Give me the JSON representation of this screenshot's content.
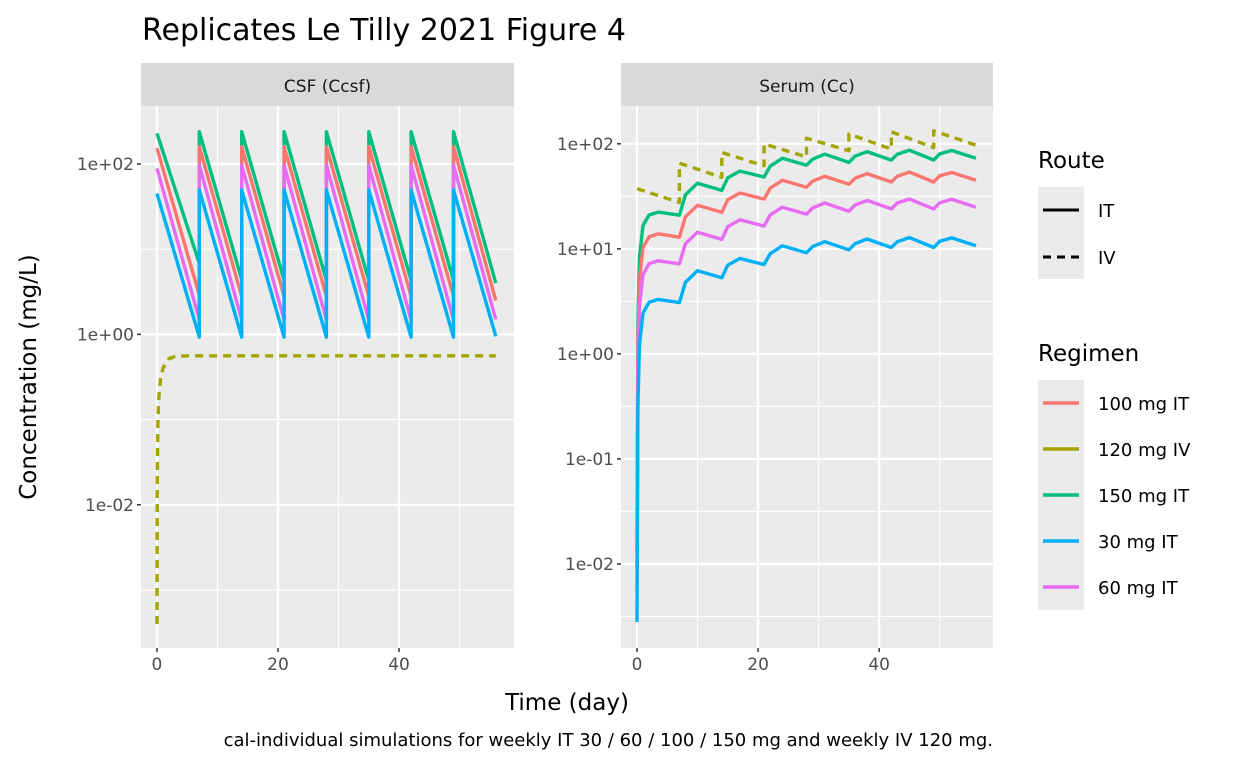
{
  "chart_data": {
    "type": "line",
    "title": "Replicates Le Tilly 2021 Figure 4",
    "xlabel": "Time (day)",
    "ylabel": "Concentration (mg/L)",
    "caption": "cal-individual simulations for weekly IT 30 / 60 / 100 / 150 mg and weekly IV 120 mg.",
    "yscale": "log10",
    "grid": true,
    "legend_position": "right",
    "legends": {
      "route": {
        "title": "Route",
        "items": [
          {
            "label": "IT",
            "linetype": "solid"
          },
          {
            "label": "IV",
            "linetype": "dashed"
          }
        ]
      },
      "regimen": {
        "title": "Regimen",
        "items": [
          {
            "label": "100 mg IT",
            "color": "#F8766D"
          },
          {
            "label": "120 mg IV",
            "color": "#A3A500"
          },
          {
            "label": "150 mg IT",
            "color": "#00BF7D"
          },
          {
            "label": "30 mg IT",
            "color": "#00B0F6"
          },
          {
            "label": "60 mg IT",
            "color": "#E76BF3"
          }
        ]
      }
    },
    "panels": [
      {
        "strip": "CSF (Ccsf)",
        "xlim": [
          -2.64,
          59
        ],
        "xticks": [
          0,
          20,
          40
        ],
        "xtick_labels": [
          "0",
          "20",
          "40"
        ],
        "ylim_log10": [
          -3.68,
          2.68
        ],
        "yticks": [
          100,
          1,
          0.01
        ],
        "ytick_labels": [
          "1e+02",
          "1e+00",
          "1e-02"
        ],
        "series": [
          {
            "name": "150 mg IT",
            "route": "IT",
            "color": "#00BF7D",
            "x": [
              0,
              7,
              7,
              14,
              14,
              21,
              21,
              28,
              28,
              35,
              35,
              42,
              42,
              49,
              49,
              56
            ],
            "y": [
              229,
              6.8,
              239,
              4.4,
              239,
              4.3,
              239,
              4.3,
              239,
              4.3,
              239,
              4.3,
              239,
              4.3,
              239,
              4.0
            ]
          },
          {
            "name": "100 mg IT",
            "route": "IT",
            "color": "#F8766D",
            "x": [
              0,
              7,
              7,
              14,
              14,
              21,
              21,
              28,
              28,
              35,
              35,
              42,
              42,
              49,
              49,
              56
            ],
            "y": [
              153,
              2.9,
              160,
              2.8,
              160,
              2.8,
              160,
              2.8,
              160,
              2.8,
              160,
              2.8,
              160,
              2.8,
              160,
              2.5
            ]
          },
          {
            "name": "60 mg IT",
            "route": "IT",
            "color": "#E76BF3",
            "x": [
              0,
              7,
              7,
              14,
              14,
              21,
              21,
              28,
              28,
              35,
              35,
              42,
              42,
              49,
              49,
              56
            ],
            "y": [
              89,
              1.5,
              97,
              1.48,
              97,
              1.48,
              97,
              1.48,
              97,
              1.48,
              97,
              1.48,
              97,
              1.48,
              97,
              1.5
            ]
          },
          {
            "name": "30 mg IT",
            "route": "IT",
            "color": "#00B0F6",
            "x": [
              0,
              7,
              7,
              14,
              14,
              21,
              21,
              28,
              28,
              35,
              35,
              42,
              42,
              49,
              49,
              56
            ],
            "y": [
              45,
              0.93,
              49.5,
              0.93,
              49.5,
              0.93,
              49.5,
              0.93,
              49.5,
              0.93,
              49.5,
              0.93,
              49.5,
              0.93,
              49.5,
              0.95
            ]
          },
          {
            "name": "120 mg IV",
            "route": "IV",
            "color": "#A3A500",
            "x": [
              0,
              0.05,
              0.15,
              0.3,
              0.6,
              1,
              1.5,
              2,
              3,
              5,
              56
            ],
            "y": [
              0.0004,
              0.02,
              0.09,
              0.18,
              0.3,
              0.4,
              0.47,
              0.52,
              0.55,
              0.56,
              0.56
            ]
          }
        ]
      },
      {
        "strip": "Serum (Cc)",
        "xlim": [
          -2.64,
          58.8
        ],
        "xticks": [
          0,
          20,
          40
        ],
        "xtick_labels": [
          "0",
          "20",
          "40"
        ],
        "ylim_log10": [
          -2.8,
          2.36
        ],
        "yticks": [
          100,
          10,
          1,
          0.1,
          0.01
        ],
        "ytick_labels": [
          "1e+02",
          "1e+01",
          "1e+00",
          "1e-01",
          "1e-02"
        ],
        "series": [
          {
            "name": "120 mg IV",
            "route": "IV",
            "color": "#A3A500",
            "x": [
              0,
              7,
              7,
              14,
              14,
              21,
              21,
              28,
              28,
              35,
              35,
              42,
              42,
              49,
              49,
              56
            ],
            "y": [
              37.5,
              27.6,
              65.4,
              48,
              82.6,
              61.7,
              99.5,
              75,
              113,
              86,
              124,
              89,
              130,
              92,
              133,
              97
            ]
          },
          {
            "name": "150 mg IT",
            "route": "IT",
            "color": "#00BF7D",
            "x": [
              0,
              0.15,
              0.4,
              1,
              2,
              3.5,
              7,
              8,
              10,
              14,
              15,
              17,
              21,
              22,
              24,
              28,
              29,
              31,
              35,
              36,
              38,
              42,
              43,
              45,
              49,
              50,
              52,
              56
            ],
            "y": [
              0.014,
              2.0,
              8.2,
              16.7,
              21,
              22.4,
              20.9,
              32.6,
              42.2,
              36,
              47.6,
              55,
              48.3,
              61.2,
              72.8,
              62.6,
              71.4,
              79.6,
              66.6,
              76.2,
              84.3,
              70,
              79.6,
              87,
              70,
              80.2,
              86.4,
              72.8
            ]
          },
          {
            "name": "100 mg IT",
            "route": "IT",
            "color": "#F8766D",
            "x": [
              0,
              0.15,
              0.4,
              1,
              2,
              3.5,
              7,
              8,
              10,
              14,
              15,
              17,
              21,
              22,
              24,
              28,
              29,
              31,
              35,
              36,
              38,
              42,
              43,
              45,
              49,
              50,
              52,
              56
            ],
            "y": [
              0.009,
              1.26,
              5.0,
              10.3,
              13,
              13.9,
              12.9,
              20.2,
              26,
              22.3,
              29.4,
              34,
              29.8,
              37.8,
              44.9,
              38.6,
              44.1,
              49.1,
              41.2,
              47,
              52.1,
              43.3,
              49.1,
              53.8,
              43.3,
              49.6,
              53.3,
              44.9
            ]
          },
          {
            "name": "60 mg IT",
            "route": "IT",
            "color": "#E76BF3",
            "x": [
              0,
              0.15,
              0.4,
              1,
              2,
              3.5,
              7,
              8,
              10,
              14,
              15,
              17,
              21,
              22,
              24,
              28,
              29,
              31,
              35,
              36,
              38,
              42,
              43,
              45,
              49,
              50,
              52,
              56
            ],
            "y": [
              0.0056,
              0.7,
              2.8,
              5.7,
              7.2,
              7.7,
              7.2,
              11.2,
              14.4,
              12.3,
              16.3,
              18.9,
              16.5,
              21,
              24.9,
              21.4,
              24.5,
              27.3,
              22.8,
              26.1,
              28.9,
              24,
              27.3,
              29.8,
              24,
              27.5,
              29.6,
              24.9
            ]
          },
          {
            "name": "30 mg IT",
            "route": "IT",
            "color": "#00B0F6",
            "x": [
              0,
              0.15,
              0.4,
              1,
              2,
              3.5,
              7,
              8,
              10,
              14,
              15,
              17,
              21,
              22,
              24,
              28,
              29,
              31,
              35,
              36,
              38,
              42,
              43,
              45,
              49,
              50,
              52,
              56
            ],
            "y": [
              0.0028,
              0.3,
              1.2,
              2.45,
              3.1,
              3.3,
              3.08,
              4.8,
              6.2,
              5.3,
              7.0,
              8.1,
              7.1,
              9.0,
              10.7,
              9.2,
              10.5,
              11.7,
              9.8,
              11.2,
              12.4,
              10.3,
              11.7,
              12.8,
              10.3,
              11.8,
              12.7,
              10.7
            ]
          }
        ]
      }
    ]
  }
}
